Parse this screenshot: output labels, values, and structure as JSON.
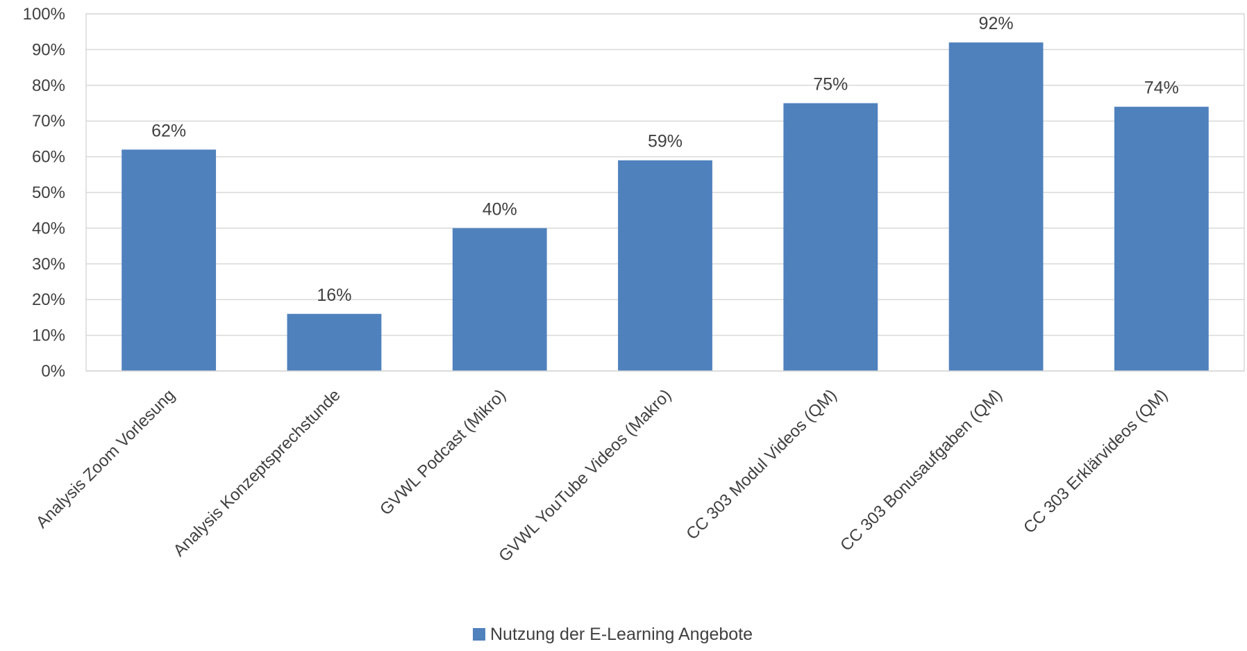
{
  "chart_data": {
    "type": "bar",
    "title": "",
    "xlabel": "",
    "ylabel": "",
    "ylim": [
      0,
      100
    ],
    "y_tick_step": 10,
    "y_tick_suffix": "%",
    "grid": true,
    "legend_position": "bottom",
    "bar_color": "#4f81bd",
    "categories": [
      "Analysis Zoom Vorlesung",
      "Analysis Konzeptsprechstunde",
      "GVWL Podcast (Mikro)",
      "GVWL YouTube Videos (Makro)",
      "CC 303 Modul Videos (QM)",
      "CC 303 Bonusaufgaben (QM)",
      "CC 303 Erklärvideos (QM)"
    ],
    "series": [
      {
        "name": "Nutzung der E-Learning Angebote",
        "values": [
          62,
          16,
          40,
          59,
          75,
          92,
          74
        ],
        "value_labels": [
          "62%",
          "16%",
          "40%",
          "59%",
          "75%",
          "92%",
          "74%"
        ]
      }
    ]
  }
}
